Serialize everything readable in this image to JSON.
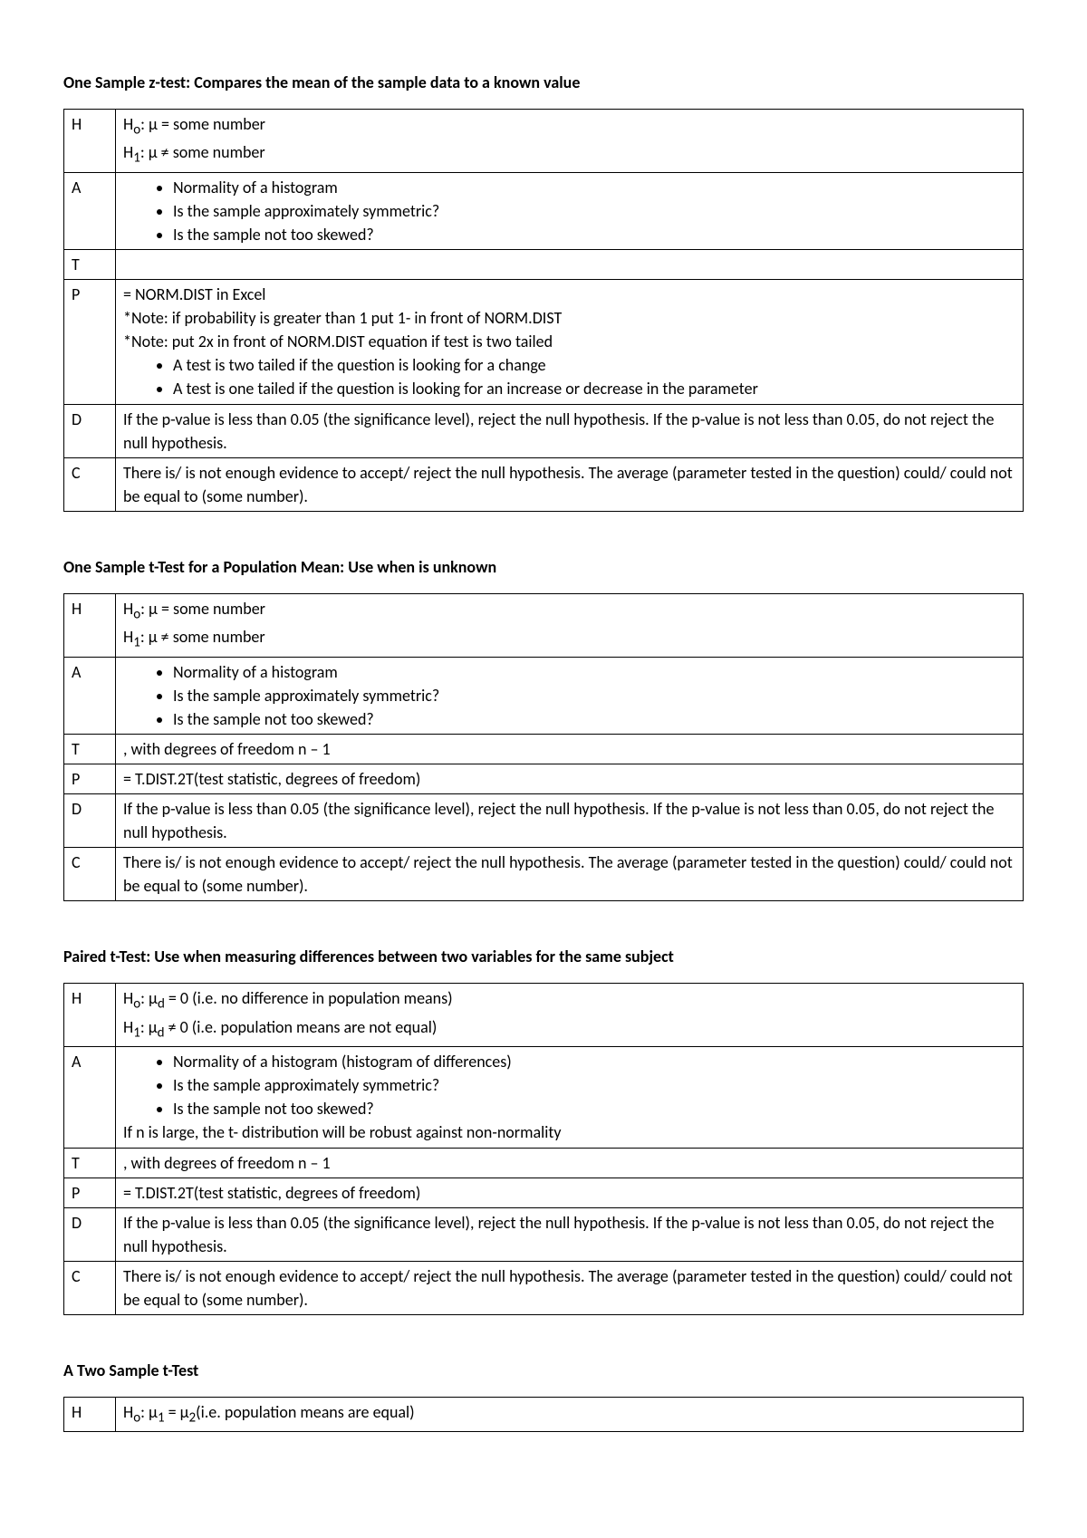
{
  "sections": [
    {
      "title": "One Sample z-test: Compares the mean of the sample data to a known value",
      "rows": [
        {
          "left": "H",
          "html": "H<sub>o</sub>: μ = some number<br>H<sub>1</sub>: μ ≠ some number"
        },
        {
          "left": "A",
          "html": "<ul class='bul'><li>Normality of a histogram</li><li>Is the sample approximately symmetric?</li><li>Is the sample not too skewed?</li></ul>"
        },
        {
          "left": "T",
          "html": ""
        },
        {
          "left": "P",
          "html": "= NORM.DIST in Excel<br>*Note: if probability is greater than 1 put 1- in front of NORM.DIST<br>*Note: put 2x in front of NORM.DIST equation if test is two tailed<ul class='bul'><li>A test is two tailed if the question is looking for a change</li><li>A test is one tailed if the question is looking for an increase or decrease in the parameter</li></ul>"
        },
        {
          "left": "D",
          "html": "If the p-value is less than 0.05 (the significance level), reject the null hypothesis. If the p-value is not less than 0.05, do not reject the null hypothesis."
        },
        {
          "left": "C",
          "html": "There is/ is not enough evidence to accept/ reject the null hypothesis. The average (parameter tested in the question) could/ could not be equal to (some number)."
        }
      ]
    },
    {
      "title": "One Sample t-Test for a Population Mean: Use when  is unknown",
      "rows": [
        {
          "left": "H",
          "html": "H<sub>o</sub>: μ = some number<br>H<sub>1</sub>: μ ≠ some number"
        },
        {
          "left": "A",
          "html": "<ul class='bul'><li>Normality of a histogram</li><li>Is the sample approximately symmetric?</li><li>Is the sample not too skewed?</li></ul>"
        },
        {
          "left": "T",
          "html": ", with degrees of freedom n – 1"
        },
        {
          "left": "P",
          "html": "= T.DIST.2T(test statistic, degrees of freedom)"
        },
        {
          "left": "D",
          "html": "If the p-value is less than 0.05 (the significance level), reject the null hypothesis. If the p-value is not less than 0.05, do not reject the null hypothesis."
        },
        {
          "left": "C",
          "html": "There is/ is not enough evidence to accept/ reject the null hypothesis. The average (parameter tested in the question) could/ could not be equal to (some number)."
        }
      ]
    },
    {
      "title": "Paired t-Test: Use when measuring differences between two variables for the same subject",
      "rows": [
        {
          "left": "H",
          "html": "H<sub>o</sub>: μ<sub>d</sub> = 0 (i.e. no difference in population means)<br>H<sub>1</sub>: μ<sub>d</sub> ≠ 0 (i.e. population means are not equal)"
        },
        {
          "left": "A",
          "html": "<ul class='bul'><li>Normality of a histogram (histogram of differences)</li><li>Is the sample approximately symmetric?</li><li>Is the sample not too skewed?</li></ul>If n is large, the t- distribution will be robust against non-normality"
        },
        {
          "left": "T",
          "html": ", with degrees of freedom n – 1"
        },
        {
          "left": "P",
          "html": "= T.DIST.2T(test statistic, degrees of freedom)"
        },
        {
          "left": "D",
          "html": "If the p-value is less than 0.05 (the significance level), reject the null hypothesis. If the p-value is not less than 0.05, do not reject the null hypothesis."
        },
        {
          "left": "C",
          "html": "There is/ is not enough evidence to accept/ reject the null hypothesis. The average (parameter tested in the question) could/ could not be equal to (some number)."
        }
      ]
    },
    {
      "title": "A Two Sample t-Test",
      "rows": [
        {
          "left": "H",
          "html": "H<sub>o</sub>: μ<sub>1</sub> = μ<sub>2</sub>(i.e. population means are equal)"
        }
      ]
    }
  ]
}
